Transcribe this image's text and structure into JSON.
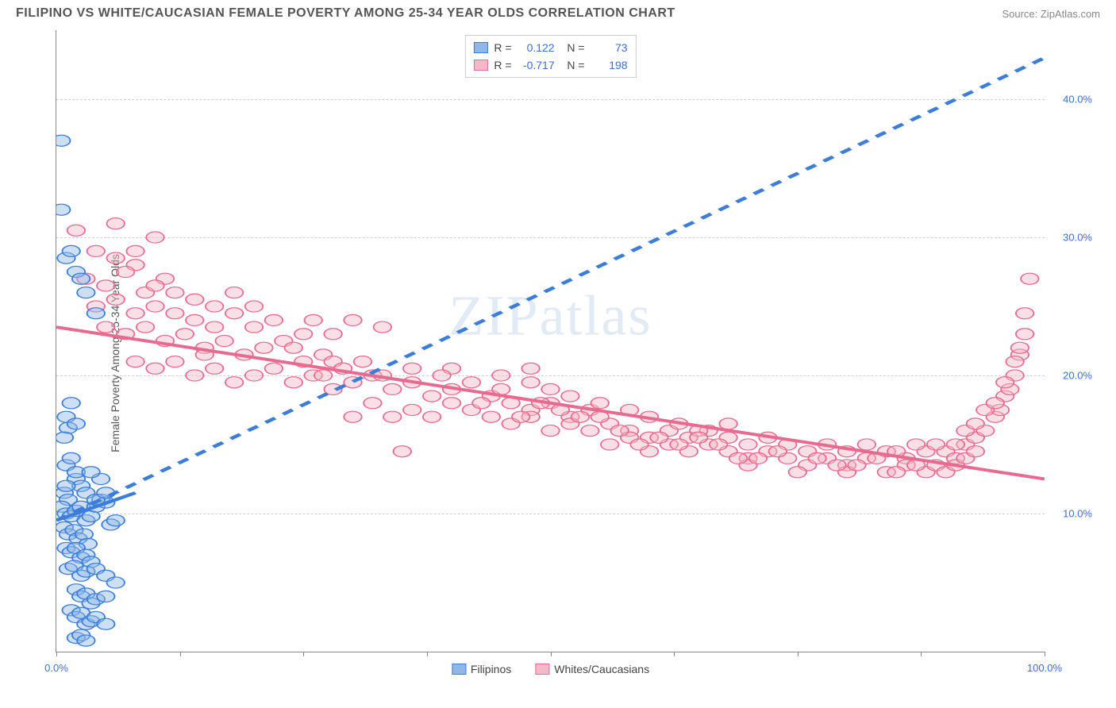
{
  "header": {
    "title": "FILIPINO VS WHITE/CAUCASIAN FEMALE POVERTY AMONG 25-34 YEAR OLDS CORRELATION CHART",
    "source": "Source: ZipAtlas.com"
  },
  "watermark": "ZIPatlas",
  "chart": {
    "type": "scatter",
    "ylabel": "Female Poverty Among 25-34 Year Olds",
    "background_color": "#ffffff",
    "grid_color": "#d0d0d0",
    "axis_color": "#888888",
    "tick_label_color": "#3b6fd6",
    "xlim": [
      0,
      100
    ],
    "ylim": [
      0,
      45
    ],
    "yticks": [
      10,
      20,
      30,
      40
    ],
    "ytick_labels": [
      "10.0%",
      "20.0%",
      "30.0%",
      "40.0%"
    ],
    "xticks": [
      0,
      12.5,
      25,
      37.5,
      50,
      62.5,
      75,
      87.5,
      100
    ],
    "xtick_labels": {
      "0": "0.0%",
      "100": "100.0%"
    },
    "marker_radius": 9,
    "marker_opacity": 0.45,
    "line_width": 2.5,
    "series": [
      {
        "name": "Filipinos",
        "color_fill": "#8fb8e8",
        "color_stroke": "#3b7dd8",
        "trend_solid": {
          "x1": 0,
          "y1": 9.5,
          "x2": 8,
          "y2": 11.5
        },
        "trend_dashed": {
          "x1": 0,
          "y1": 9.5,
          "x2": 100,
          "y2": 43
        },
        "stats": {
          "R": "0.122",
          "N": "73"
        },
        "points": [
          [
            0.5,
            37
          ],
          [
            0.5,
            32
          ],
          [
            1,
            28.5
          ],
          [
            1.5,
            29
          ],
          [
            2,
            27.5
          ],
          [
            2.5,
            27
          ],
          [
            3,
            26
          ],
          [
            4,
            24.5
          ],
          [
            1,
            17
          ],
          [
            1.2,
            16.2
          ],
          [
            1.5,
            18
          ],
          [
            0.8,
            15.5
          ],
          [
            2,
            16.5
          ],
          [
            1,
            13.5
          ],
          [
            1.5,
            14
          ],
          [
            2,
            12.5
          ],
          [
            2.5,
            12
          ],
          [
            0.8,
            11.5
          ],
          [
            1.2,
            11
          ],
          [
            0.5,
            10.5
          ],
          [
            1,
            10
          ],
          [
            1.5,
            9.8
          ],
          [
            2,
            10.2
          ],
          [
            2.5,
            10.5
          ],
          [
            3,
            9.5
          ],
          [
            3.5,
            9.8
          ],
          [
            4,
            10.5
          ],
          [
            4.5,
            11
          ],
          [
            5,
            10.8
          ],
          [
            5.5,
            9.2
          ],
          [
            6,
            9.5
          ],
          [
            0.8,
            9
          ],
          [
            1.2,
            8.5
          ],
          [
            1.8,
            8.8
          ],
          [
            2.2,
            8.2
          ],
          [
            2.8,
            8.5
          ],
          [
            3.2,
            7.8
          ],
          [
            1,
            7.5
          ],
          [
            1.5,
            7.2
          ],
          [
            2,
            7.5
          ],
          [
            2.5,
            6.8
          ],
          [
            3,
            7
          ],
          [
            3.5,
            6.5
          ],
          [
            1.2,
            6
          ],
          [
            1.8,
            6.2
          ],
          [
            2.5,
            5.5
          ],
          [
            3,
            5.8
          ],
          [
            4,
            6
          ],
          [
            5,
            5.5
          ],
          [
            2,
            4.5
          ],
          [
            2.5,
            4
          ],
          [
            3,
            4.2
          ],
          [
            3.5,
            3.5
          ],
          [
            4,
            3.8
          ],
          [
            5,
            4
          ],
          [
            1.5,
            3
          ],
          [
            2,
            2.5
          ],
          [
            2.5,
            2.8
          ],
          [
            3,
            2
          ],
          [
            3.5,
            2.2
          ],
          [
            4,
            2.5
          ],
          [
            5,
            2
          ],
          [
            6,
            5
          ],
          [
            2,
            1
          ],
          [
            2.5,
            1.2
          ],
          [
            3,
            0.8
          ],
          [
            1,
            12
          ],
          [
            2,
            13
          ],
          [
            3,
            11.5
          ],
          [
            4,
            11
          ],
          [
            5,
            11.5
          ],
          [
            4.5,
            12.5
          ],
          [
            3.5,
            13
          ]
        ]
      },
      {
        "name": "Whites/Caucasians",
        "color_fill": "#f5b8c8",
        "color_stroke": "#e86a91",
        "trend_solid": {
          "x1": 0,
          "y1": 23.5,
          "x2": 100,
          "y2": 12.5
        },
        "stats": {
          "R": "-0.717",
          "N": "198"
        },
        "points": [
          [
            2,
            30.5
          ],
          [
            4,
            29
          ],
          [
            6,
            31
          ],
          [
            8,
            28
          ],
          [
            10,
            30
          ],
          [
            3,
            27
          ],
          [
            5,
            26.5
          ],
          [
            7,
            27.5
          ],
          [
            9,
            26
          ],
          [
            11,
            27
          ],
          [
            4,
            25
          ],
          [
            6,
            25.5
          ],
          [
            8,
            24.5
          ],
          [
            10,
            25
          ],
          [
            12,
            26
          ],
          [
            14,
            25.5
          ],
          [
            16,
            25
          ],
          [
            18,
            24.5
          ],
          [
            20,
            25
          ],
          [
            5,
            23.5
          ],
          [
            7,
            23
          ],
          [
            9,
            23.5
          ],
          [
            11,
            22.5
          ],
          [
            13,
            23
          ],
          [
            15,
            22
          ],
          [
            17,
            22.5
          ],
          [
            19,
            21.5
          ],
          [
            21,
            22
          ],
          [
            23,
            22.5
          ],
          [
            25,
            21
          ],
          [
            27,
            21.5
          ],
          [
            8,
            21
          ],
          [
            10,
            20.5
          ],
          [
            12,
            21
          ],
          [
            14,
            20
          ],
          [
            16,
            20.5
          ],
          [
            18,
            19.5
          ],
          [
            20,
            20
          ],
          [
            22,
            20.5
          ],
          [
            24,
            19.5
          ],
          [
            26,
            20
          ],
          [
            28,
            19
          ],
          [
            30,
            19.5
          ],
          [
            32,
            20
          ],
          [
            34,
            19
          ],
          [
            36,
            19.5
          ],
          [
            38,
            18.5
          ],
          [
            40,
            19
          ],
          [
            42,
            19.5
          ],
          [
            15,
            21.5
          ],
          [
            28,
            21
          ],
          [
            30,
            17
          ],
          [
            32,
            18
          ],
          [
            34,
            17
          ],
          [
            36,
            17.5
          ],
          [
            38,
            17
          ],
          [
            40,
            18
          ],
          [
            42,
            17.5
          ],
          [
            44,
            18.5
          ],
          [
            46,
            18
          ],
          [
            48,
            17.5
          ],
          [
            50,
            18
          ],
          [
            52,
            17
          ],
          [
            54,
            17.5
          ],
          [
            44,
            17
          ],
          [
            46,
            16.5
          ],
          [
            48,
            17
          ],
          [
            50,
            16
          ],
          [
            52,
            16.5
          ],
          [
            54,
            16
          ],
          [
            56,
            16.5
          ],
          [
            58,
            16
          ],
          [
            60,
            15.5
          ],
          [
            62,
            16
          ],
          [
            64,
            15.5
          ],
          [
            66,
            16
          ],
          [
            55,
            17
          ],
          [
            56,
            15
          ],
          [
            58,
            15.5
          ],
          [
            60,
            14.5
          ],
          [
            62,
            15
          ],
          [
            64,
            14.5
          ],
          [
            66,
            15
          ],
          [
            68,
            14.5
          ],
          [
            70,
            14
          ],
          [
            72,
            14.5
          ],
          [
            74,
            14
          ],
          [
            76,
            13.5
          ],
          [
            78,
            14
          ],
          [
            80,
            13.5
          ],
          [
            82,
            14
          ],
          [
            68,
            15.5
          ],
          [
            70,
            15
          ],
          [
            72,
            15.5
          ],
          [
            74,
            15
          ],
          [
            76,
            14.5
          ],
          [
            78,
            15
          ],
          [
            80,
            14.5
          ],
          [
            82,
            15
          ],
          [
            84,
            14.5
          ],
          [
            86,
            14
          ],
          [
            88,
            14.5
          ],
          [
            84,
            13
          ],
          [
            86,
            13.5
          ],
          [
            88,
            13
          ],
          [
            90,
            14.5
          ],
          [
            91,
            14
          ],
          [
            92,
            15
          ],
          [
            93,
            15.5
          ],
          [
            94,
            16
          ],
          [
            95,
            17
          ],
          [
            95.5,
            17.5
          ],
          [
            96,
            18.5
          ],
          [
            96.5,
            19
          ],
          [
            97,
            20
          ],
          [
            97.5,
            21.5
          ],
          [
            98,
            23
          ],
          [
            98.5,
            27
          ],
          [
            35,
            14.5
          ],
          [
            30,
            24
          ],
          [
            33,
            23.5
          ],
          [
            26,
            24
          ],
          [
            28,
            23
          ],
          [
            40,
            20.5
          ],
          [
            45,
            19
          ],
          [
            48,
            19.5
          ],
          [
            50,
            19
          ],
          [
            52,
            18.5
          ],
          [
            55,
            18
          ],
          [
            58,
            17.5
          ],
          [
            60,
            17
          ],
          [
            63,
            16.5
          ],
          [
            65,
            16
          ],
          [
            68,
            16.5
          ],
          [
            70,
            13.5
          ],
          [
            75,
            13
          ],
          [
            80,
            13
          ],
          [
            85,
            13
          ],
          [
            87,
            13.5
          ],
          [
            89,
            13.5
          ],
          [
            90,
            13
          ],
          [
            91,
            13.5
          ],
          [
            92,
            14
          ],
          [
            93,
            14.5
          ],
          [
            18,
            26
          ],
          [
            20,
            23.5
          ],
          [
            24,
            22
          ],
          [
            27,
            20
          ],
          [
            29,
            20.5
          ],
          [
            31,
            21
          ],
          [
            33,
            20
          ],
          [
            36,
            20.5
          ],
          [
            39,
            20
          ],
          [
            43,
            18
          ],
          [
            47,
            17
          ],
          [
            49,
            18
          ],
          [
            51,
            17.5
          ],
          [
            53,
            17
          ],
          [
            57,
            16
          ],
          [
            59,
            15
          ],
          [
            61,
            15.5
          ],
          [
            63,
            15
          ],
          [
            65,
            15.5
          ],
          [
            67,
            15
          ],
          [
            69,
            14
          ],
          [
            71,
            14
          ],
          [
            73,
            14.5
          ],
          [
            77,
            14
          ],
          [
            79,
            13.5
          ],
          [
            81,
            13.5
          ],
          [
            83,
            14
          ],
          [
            85,
            14.5
          ],
          [
            87,
            15
          ],
          [
            89,
            15
          ],
          [
            91,
            15
          ],
          [
            92,
            16
          ],
          [
            93,
            16.5
          ],
          [
            94,
            17.5
          ],
          [
            95,
            18
          ],
          [
            96,
            19.5
          ],
          [
            97,
            21
          ],
          [
            97.5,
            22
          ],
          [
            98,
            24.5
          ],
          [
            45,
            20
          ],
          [
            48,
            20.5
          ],
          [
            22,
            24
          ],
          [
            25,
            23
          ],
          [
            16,
            23.5
          ],
          [
            14,
            24
          ],
          [
            12,
            24.5
          ],
          [
            10,
            26.5
          ],
          [
            8,
            29
          ],
          [
            6,
            28.5
          ]
        ]
      }
    ]
  },
  "legend_bottom": [
    {
      "label": "Filipinos",
      "fill": "#8fb8e8",
      "stroke": "#3b7dd8"
    },
    {
      "label": "Whites/Caucasians",
      "fill": "#f5b8c8",
      "stroke": "#e86a91"
    }
  ]
}
